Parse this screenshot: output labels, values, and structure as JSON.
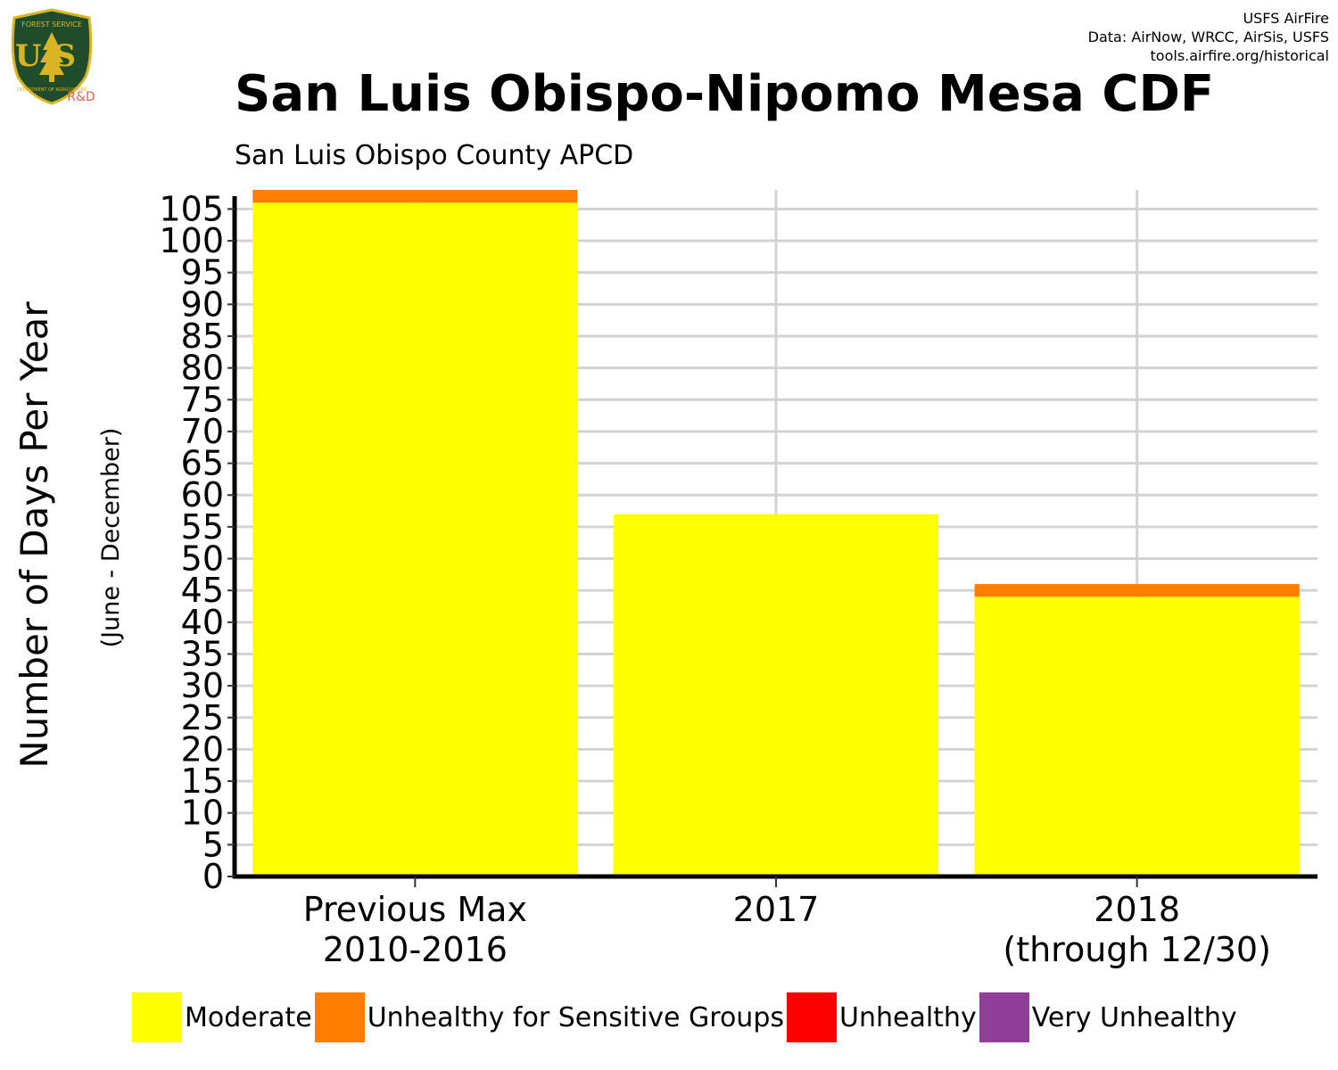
{
  "header": {
    "credits": [
      "USFS AirFire",
      "Data: AirNow, WRCC, AirSis, USFS",
      "tools.airfire.org/historical"
    ],
    "title": "San Luis Obispo-Nipomo Mesa CDF",
    "subtitle": "San Luis Obispo County APCD"
  },
  "logo": {
    "top_text": "FOREST SERVICE",
    "letters": "US",
    "bottom_text": "DEPARTMENT OF AGRICULTURE",
    "badge": "R&D",
    "colors": {
      "shield": "#1f4d2b",
      "trim": "#d9b526",
      "badge": "#e8654d"
    }
  },
  "chart_data": {
    "type": "bar",
    "stacked": true,
    "categories": [
      [
        "Previous Max",
        "2010-2016"
      ],
      [
        "2017"
      ],
      [
        "2018",
        "(through 12/30)"
      ]
    ],
    "series": [
      {
        "name": "Moderate",
        "color": "#ffff00",
        "values": [
          106,
          57,
          44
        ]
      },
      {
        "name": "Unhealthy for Sensitive Groups",
        "color": "#ff7e00",
        "values": [
          2,
          0,
          2
        ]
      },
      {
        "name": "Unhealthy",
        "color": "#ff0000",
        "values": [
          0,
          0,
          0
        ]
      },
      {
        "name": "Very Unhealthy",
        "color": "#8f3f97",
        "values": [
          0,
          0,
          0
        ]
      }
    ],
    "ylabel": "Number of Days Per Year",
    "ylabel_sub": "(June - December)",
    "ylim": [
      0,
      108
    ],
    "yticks": [
      0,
      5,
      10,
      15,
      20,
      25,
      30,
      35,
      40,
      45,
      50,
      55,
      60,
      65,
      70,
      75,
      80,
      85,
      90,
      95,
      100,
      105
    ],
    "grid": true,
    "legend_position": "bottom"
  }
}
